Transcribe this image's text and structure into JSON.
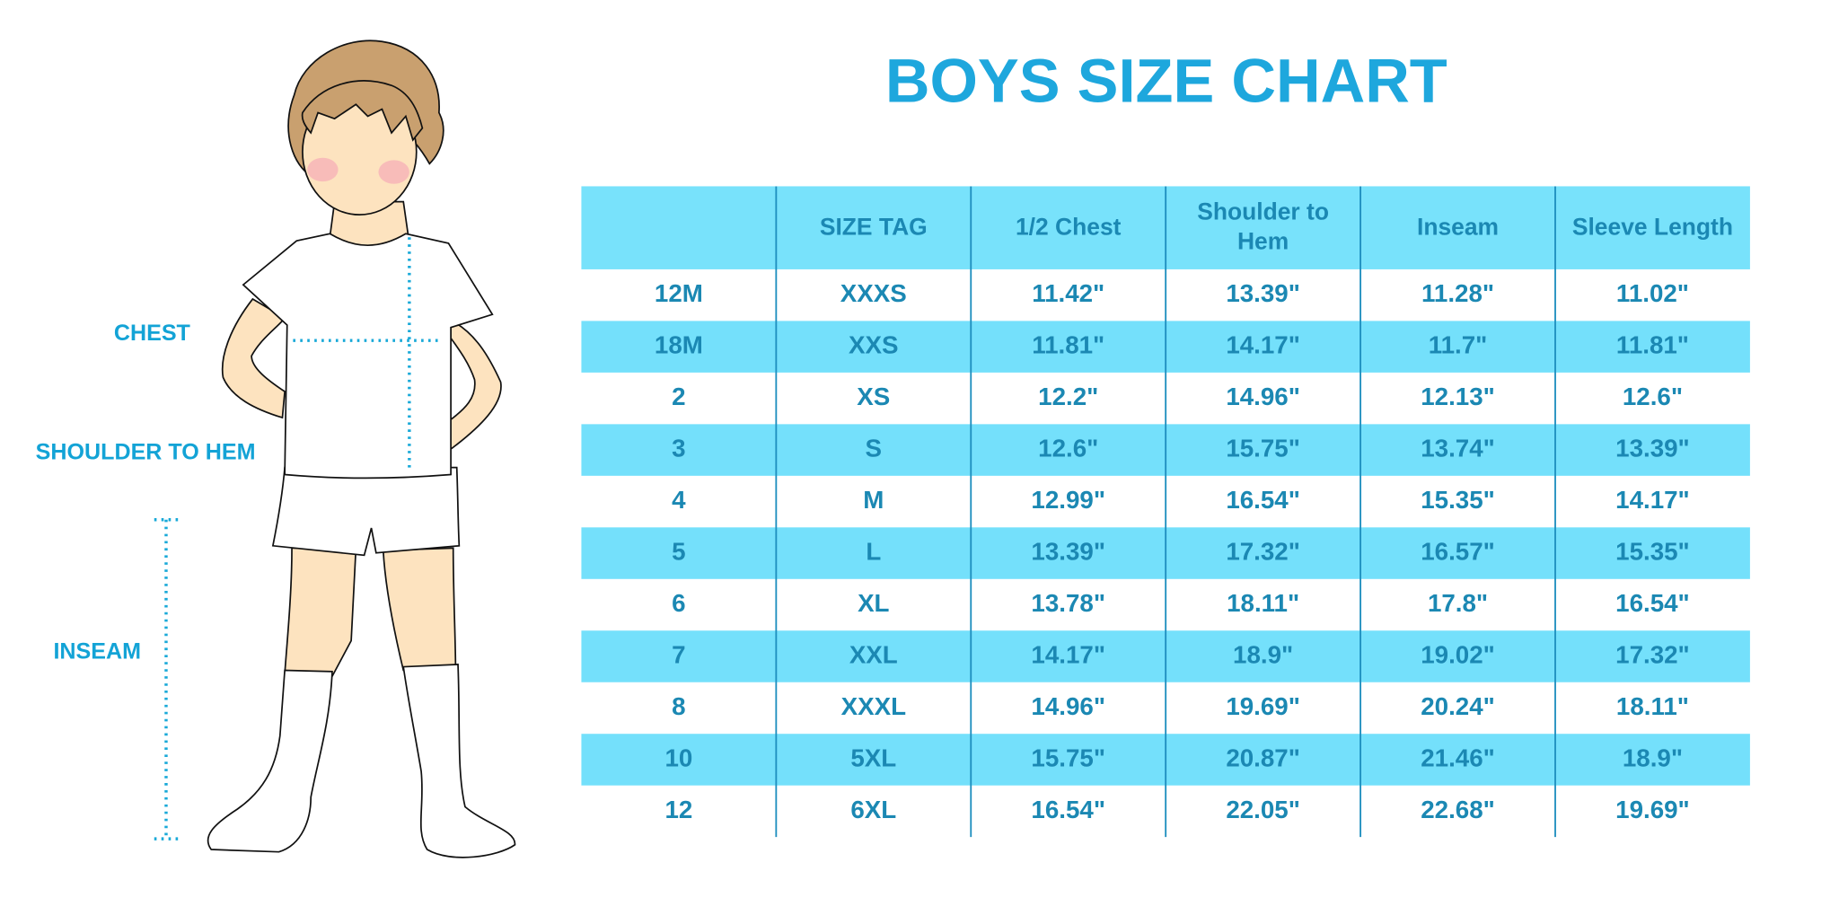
{
  "header": {
    "title": "BOYS SIZE CHART"
  },
  "figure": {
    "labels": [
      "CHEST",
      "SHOULDER TO HEM",
      "INSEAM"
    ]
  },
  "table": {
    "columns": [
      "SIZE TAG",
      "1/2 Chest",
      "Shoulder to Hem",
      "Inseam",
      "Sleeve Length"
    ],
    "rows": [
      [
        "12M",
        "XXXS",
        "11.42\"",
        "13.39\"",
        "11.28\"",
        "11.02\""
      ],
      [
        "18M",
        "XXS",
        "11.81\"",
        "14.17\"",
        "11.7\"",
        "11.81\""
      ],
      [
        "2",
        "XS",
        "12.2\"",
        "14.96\"",
        "12.13\"",
        "12.6\""
      ],
      [
        "3",
        "S",
        "12.6\"",
        "15.75\"",
        "13.74\"",
        "13.39\""
      ],
      [
        "4",
        "M",
        "12.99\"",
        "16.54\"",
        "15.35\"",
        "14.17\""
      ],
      [
        "5",
        "L",
        "13.39\"",
        "17.32\"",
        "16.57\"",
        "15.35\""
      ],
      [
        "6",
        "XL",
        "13.78\"",
        "18.11\"",
        "17.8\"",
        "16.54\""
      ],
      [
        "7",
        "XXL",
        "14.17\"",
        "18.9\"",
        "19.02\"",
        "17.32\""
      ],
      [
        "8",
        "XXXL",
        "14.96\"",
        "19.69\"",
        "20.24\"",
        "18.11\""
      ],
      [
        "10",
        "5XL",
        "15.75\"",
        "20.87\"",
        "21.46\"",
        "18.9\""
      ],
      [
        "12",
        "6XL",
        "16.54\"",
        "22.05\"",
        "22.68\"",
        "19.69\""
      ]
    ]
  }
}
